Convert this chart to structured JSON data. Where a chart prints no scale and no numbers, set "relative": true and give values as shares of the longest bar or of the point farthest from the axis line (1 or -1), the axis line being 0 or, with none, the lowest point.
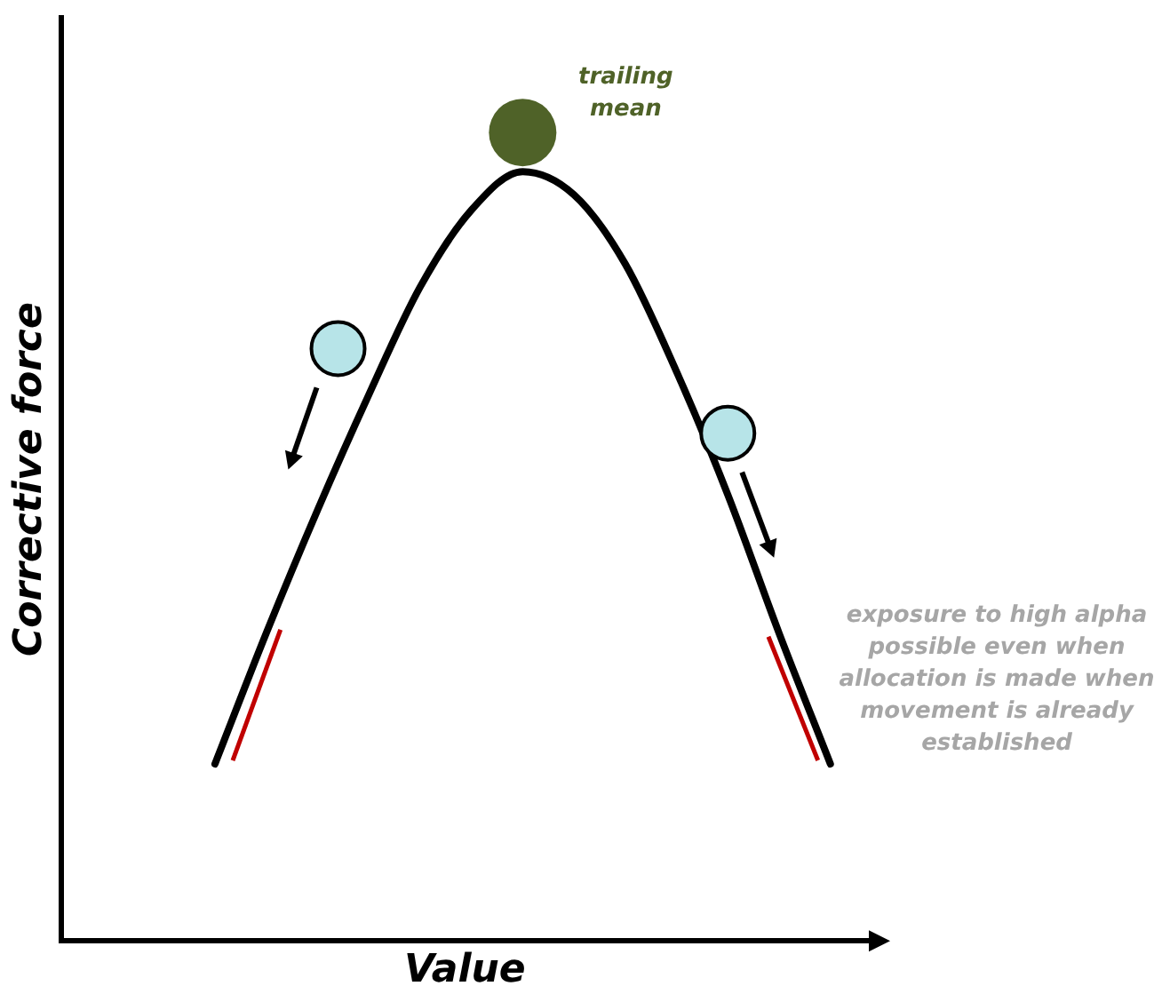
{
  "chart_data": {
    "type": "line",
    "relative": true,
    "xlabel": "Value",
    "ylabel": "Corrective force",
    "categories": [
      null,
      null,
      null,
      null,
      null,
      null,
      null,
      null,
      null,
      null,
      null,
      null,
      null
    ],
    "series": [
      {
        "color": "#000000",
        "values": [
          0.23,
          0.4,
          0.56,
          0.71,
          0.85,
          0.95,
          1.0,
          0.97,
          0.88,
          0.74,
          0.58,
          0.4,
          0.23
        ]
      }
    ],
    "annotations": [
      "trailing mean",
      "exposure to high alpha possible even when allocation is made when movement is already established"
    ],
    "legend": false,
    "grid": false,
    "marker": "none"
  }
}
